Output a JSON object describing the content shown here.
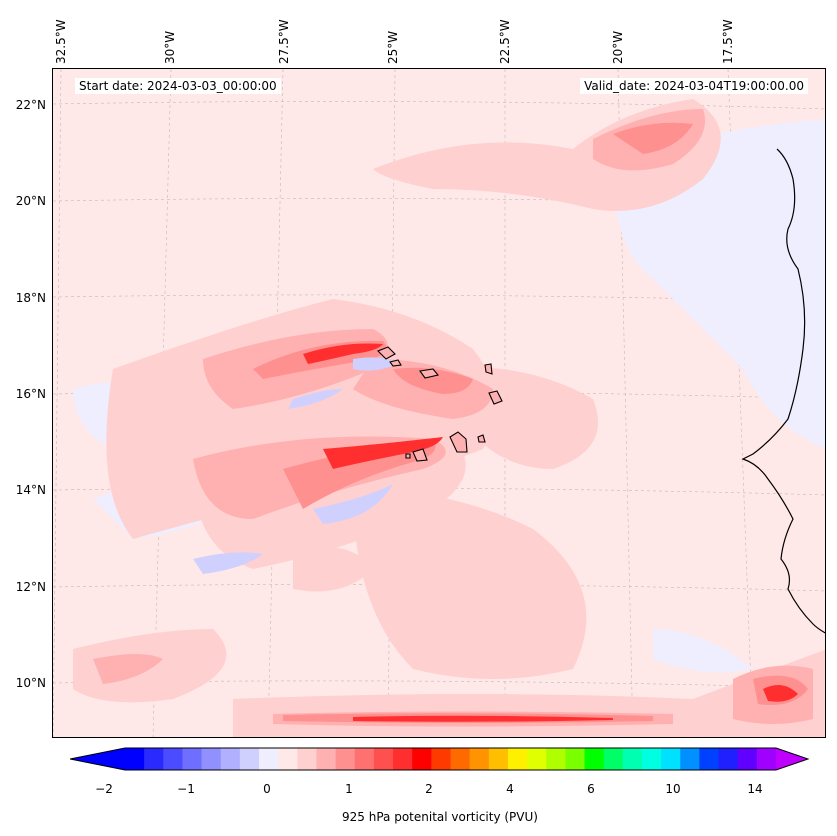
{
  "header": {
    "start_date": "Start date: 2024-03-03_00:00:00",
    "valid_date": "Valid_date: 2024-03-04T19:00:00.00"
  },
  "axes": {
    "lon_labels": [
      "32.5°W",
      "30°W",
      "27.5°W",
      "25°W",
      "22.5°W",
      "20°W",
      "17.5°W"
    ],
    "lat_labels": [
      "22°N",
      "20°N",
      "18°N",
      "16°N",
      "14°N",
      "12°N",
      "10°N"
    ]
  },
  "colorbar": {
    "label": "925 hPa potenital vorticity (PVU)",
    "ticks": [
      "−2",
      "−1",
      "0",
      "1",
      "2",
      "4",
      "6",
      "10",
      "14"
    ],
    "colors": [
      "#0000ff",
      "#2a2aff",
      "#4b4bff",
      "#6f6fff",
      "#9090ff",
      "#b0b0ff",
      "#d0d0ff",
      "#eeeeff",
      "#ffe8e8",
      "#ffd0d0",
      "#ffb0b0",
      "#ff9090",
      "#ff7070",
      "#ff5050",
      "#ff2f2f",
      "#ff0000",
      "#ff3a00",
      "#ff6a00",
      "#ff9400",
      "#ffbf00",
      "#fff000",
      "#e0ff00",
      "#b0ff00",
      "#7aff00",
      "#00ff00",
      "#00ff66",
      "#00ffb0",
      "#00ffe0",
      "#00e0ff",
      "#0090ff",
      "#0040ff",
      "#2020ff",
      "#6000ff",
      "#a000ff"
    ],
    "extend_low": "#0000ff",
    "extend_high": "#c000ff"
  },
  "map_colors": {
    "background": "#ffe8e8",
    "light_pink": "#ffd0d0",
    "pink": "#ffb0b0",
    "rose": "#ff9090",
    "red": "#ff5050",
    "bright_red": "#ff0000",
    "light_blue": "#eeeeff",
    "blue": "#d0d0ff",
    "mid_blue": "#b0b0ff",
    "coast": "#000000",
    "grid": "#bbbbbb"
  }
}
